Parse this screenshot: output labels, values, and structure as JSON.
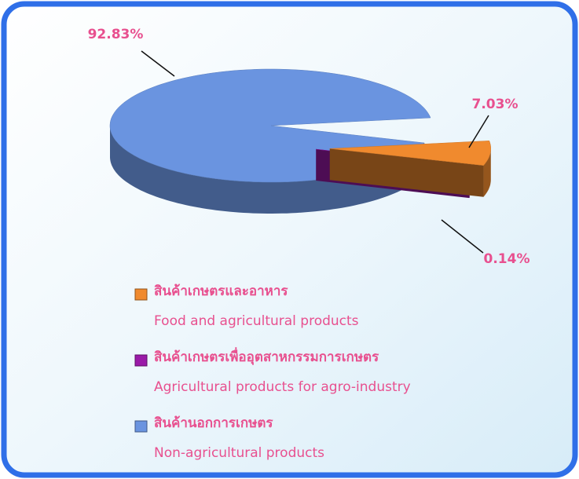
{
  "chart_data": {
    "type": "pie",
    "categories": [
      "สินค้าเกษตรและอาหาร",
      "สินค้าเกษตรเพื่ออุตสาหกรรมการเกษตร",
      "สินค้านอกการเกษตร"
    ],
    "category_subtitles": [
      "Food and agricultural products",
      "Agricultural products for agro-industry",
      "Non-agricultural products"
    ],
    "values": [
      7.03,
      0.14,
      92.83
    ],
    "value_labels": [
      "7.03%",
      "0.14%",
      "92.83%"
    ],
    "colors": [
      "#f08a2e",
      "#9a1aa8",
      "#6a94e0"
    ],
    "legend": "bottom-left"
  }
}
